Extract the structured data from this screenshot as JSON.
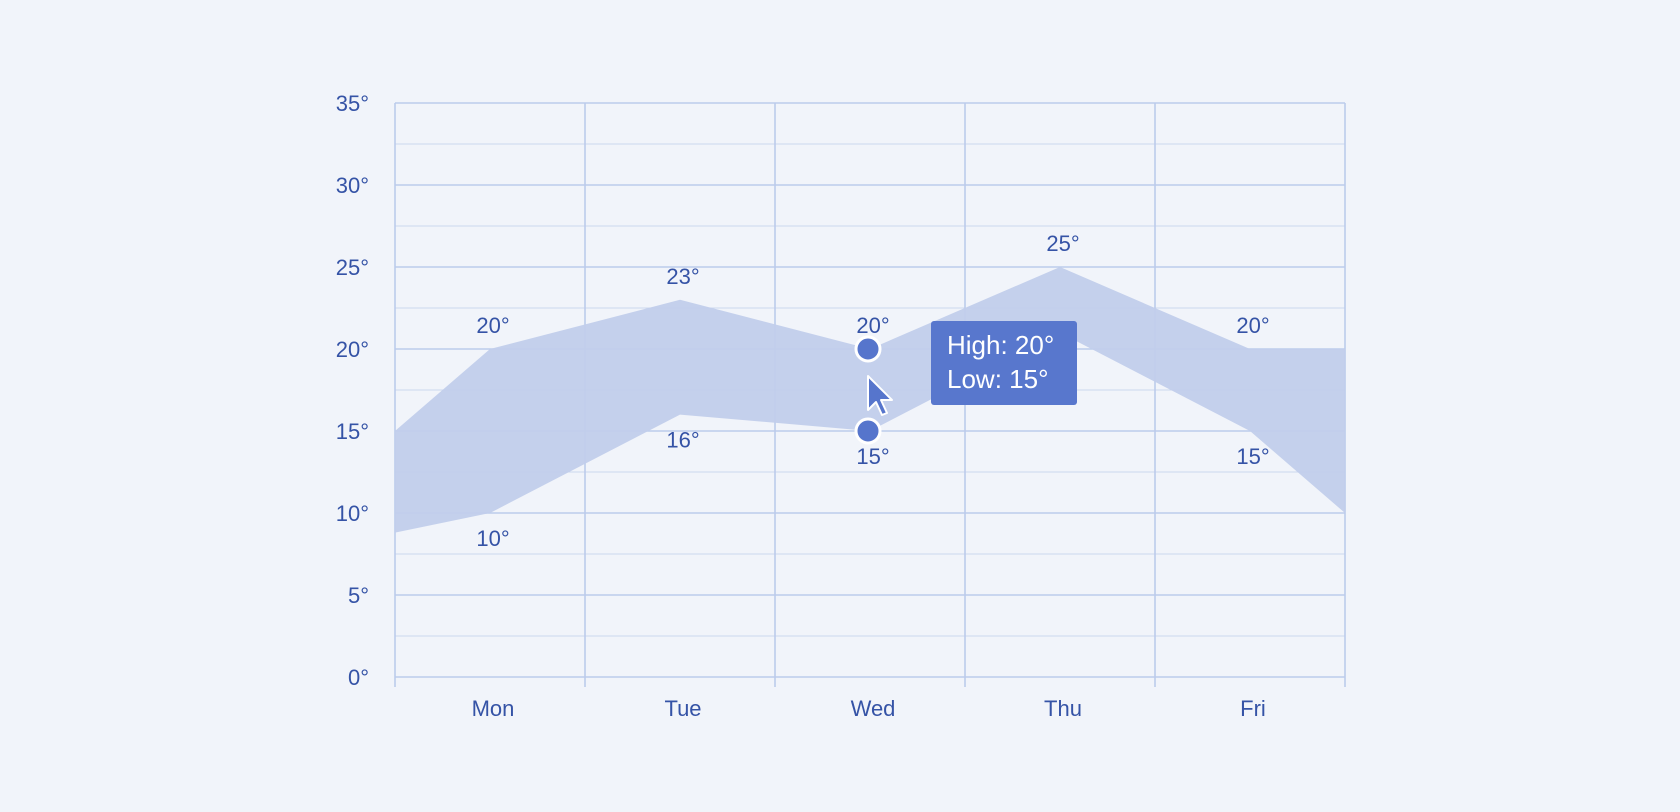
{
  "chart_data": {
    "type": "area",
    "subtype": "range",
    "categories": [
      "Mon",
      "Tue",
      "Wed",
      "Thu",
      "Fri"
    ],
    "x_range": [
      -0.5,
      4.5
    ],
    "ylim": [
      0,
      35
    ],
    "y_ticks": [
      {
        "value": 0,
        "label": "0°"
      },
      {
        "value": 5,
        "label": "5°"
      },
      {
        "value": 10,
        "label": "10°"
      },
      {
        "value": 15,
        "label": "15°"
      },
      {
        "value": 20,
        "label": "20°"
      },
      {
        "value": 25,
        "label": "25°"
      },
      {
        "value": 30,
        "label": "30°"
      },
      {
        "value": 35,
        "label": "35°"
      }
    ],
    "y_minor_step": 2.5,
    "grid": true,
    "series": [
      {
        "key": "high",
        "points": [
          {
            "x": -0.5,
            "y": 15
          },
          {
            "x": 0,
            "y": 20
          },
          {
            "x": 1,
            "y": 23
          },
          {
            "x": 2,
            "y": 20
          },
          {
            "x": 3,
            "y": 25
          },
          {
            "x": 4,
            "y": 20
          },
          {
            "x": 4.5,
            "y": 20
          }
        ],
        "labels": [
          "20°",
          "23°",
          "20°",
          "25°",
          "20°"
        ]
      },
      {
        "key": "low",
        "points": [
          {
            "x": -0.5,
            "y": 8.8
          },
          {
            "x": 0,
            "y": 10
          },
          {
            "x": 1,
            "y": 16
          },
          {
            "x": 2,
            "y": 15
          },
          {
            "x": 3,
            "y": 21
          },
          {
            "x": 4,
            "y": 15
          },
          {
            "x": 4.5,
            "y": 10
          }
        ],
        "labels": [
          "10°",
          "16°",
          "15°",
          "",
          "15°"
        ]
      }
    ],
    "highlight": {
      "index": 2,
      "high": 20,
      "low": 15
    },
    "tooltip": {
      "line1": "High: 20°",
      "line2": "Low: 15°"
    },
    "colors": {
      "area": "#c1cdeb",
      "grid": "#bccbeb",
      "text": "#3553a6",
      "marker": "#5675cc",
      "tooltip_bg": "#5877cd"
    }
  }
}
